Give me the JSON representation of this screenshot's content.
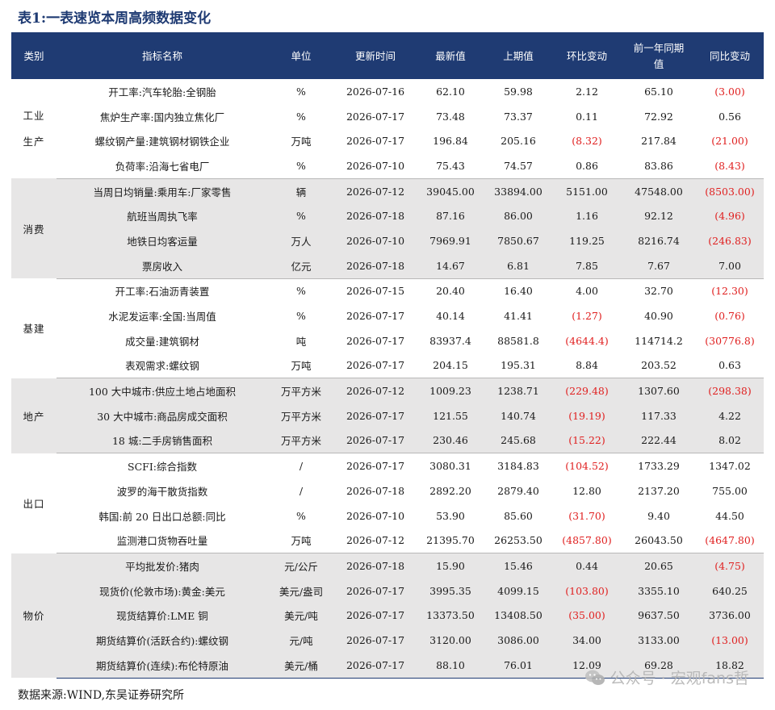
{
  "title": "表1:一表速览本周高频数据变化",
  "headers": [
    "类别",
    "指标名称",
    "单位",
    "更新时间",
    "最新值",
    "上期值",
    "环比变动",
    "前一年同期值",
    "同比变动"
  ],
  "groups": [
    {
      "category": "工业生产",
      "bg": "white",
      "rows": [
        {
          "name": "开工率:汽车轮胎:全钢胎",
          "unit": "%",
          "date": "2026-07-16",
          "latest": "62.10",
          "prev": "59.98",
          "mom": "2.12",
          "yoy_prev": "65.10",
          "yoy": "(3.00)"
        },
        {
          "name": "焦炉生产率:国内独立焦化厂",
          "unit": "%",
          "date": "2026-07-17",
          "latest": "73.48",
          "prev": "73.37",
          "mom": "0.11",
          "yoy_prev": "72.92",
          "yoy": "0.56"
        },
        {
          "name": "螺纹钢产量:建筑钢材钢铁企业",
          "unit": "万吨",
          "date": "2026-07-17",
          "latest": "196.84",
          "prev": "205.16",
          "mom": "(8.32)",
          "yoy_prev": "217.84",
          "yoy": "(21.00)"
        },
        {
          "name": "负荷率:沿海七省电厂",
          "unit": "%",
          "date": "2026-07-10",
          "latest": "75.43",
          "prev": "74.57",
          "mom": "0.86",
          "yoy_prev": "83.86",
          "yoy": "(8.43)"
        }
      ]
    },
    {
      "category": "消费",
      "bg": "gray",
      "rows": [
        {
          "name": "当周日均销量:乘用车:厂家零售",
          "unit": "辆",
          "date": "2026-07-12",
          "latest": "39045.00",
          "prev": "33894.00",
          "mom": "5151.00",
          "yoy_prev": "47548.00",
          "yoy": "(8503.00)"
        },
        {
          "name": "航班当周执飞率",
          "unit": "%",
          "date": "2026-07-18",
          "latest": "87.16",
          "prev": "86.00",
          "mom": "1.16",
          "yoy_prev": "92.12",
          "yoy": "(4.96)"
        },
        {
          "name": "地铁日均客运量",
          "unit": "万人",
          "date": "2026-07-10",
          "latest": "7969.91",
          "prev": "7850.67",
          "mom": "119.25",
          "yoy_prev": "8216.74",
          "yoy": "(246.83)"
        },
        {
          "name": "票房收入",
          "unit": "亿元",
          "date": "2026-07-18",
          "latest": "14.67",
          "prev": "6.81",
          "mom": "7.85",
          "yoy_prev": "7.67",
          "yoy": "7.00"
        }
      ]
    },
    {
      "category": "基建",
      "bg": "white",
      "rows": [
        {
          "name": "开工率:石油沥青装置",
          "unit": "%",
          "date": "2026-07-15",
          "latest": "20.40",
          "prev": "16.40",
          "mom": "4.00",
          "yoy_prev": "32.70",
          "yoy": "(12.30)"
        },
        {
          "name": "水泥发运率:全国:当周值",
          "unit": "%",
          "date": "2026-07-17",
          "latest": "40.14",
          "prev": "41.41",
          "mom": "(1.27)",
          "yoy_prev": "40.90",
          "yoy": "(0.76)"
        },
        {
          "name": "成交量:建筑钢材",
          "unit": "吨",
          "date": "2026-07-17",
          "latest": "83937.4",
          "prev": "88581.8",
          "mom": "(4644.4)",
          "yoy_prev": "114714.2",
          "yoy": "(30776.8)"
        },
        {
          "name": "表观需求:螺纹钢",
          "unit": "万吨",
          "date": "2026-07-17",
          "latest": "204.15",
          "prev": "195.31",
          "mom": "8.84",
          "yoy_prev": "203.52",
          "yoy": "0.63"
        }
      ]
    },
    {
      "category": "地产",
      "bg": "gray",
      "rows": [
        {
          "name": "100 大中城市:供应土地占地面积",
          "unit": "万平方米",
          "date": "2026-07-12",
          "latest": "1009.23",
          "prev": "1238.71",
          "mom": "(229.48)",
          "yoy_prev": "1307.60",
          "yoy": "(298.38)"
        },
        {
          "name": "30 大中城市:商品房成交面积",
          "unit": "万平方米",
          "date": "2026-07-17",
          "latest": "121.55",
          "prev": "140.74",
          "mom": "(19.19)",
          "yoy_prev": "117.33",
          "yoy": "4.22"
        },
        {
          "name": "18 城:二手房销售面积",
          "unit": "万平方米",
          "date": "2026-07-17",
          "latest": "230.46",
          "prev": "245.68",
          "mom": "(15.22)",
          "yoy_prev": "222.44",
          "yoy": "8.02"
        }
      ]
    },
    {
      "category": "出口",
      "bg": "white",
      "rows": [
        {
          "name": "SCFI:综合指数",
          "unit": "/",
          "date": "2026-07-17",
          "latest": "3080.31",
          "prev": "3184.83",
          "mom": "(104.52)",
          "yoy_prev": "1733.29",
          "yoy": "1347.02"
        },
        {
          "name": "波罗的海干散货指数",
          "unit": "/",
          "date": "2026-07-18",
          "latest": "2892.20",
          "prev": "2879.40",
          "mom": "12.80",
          "yoy_prev": "2137.20",
          "yoy": "755.00"
        },
        {
          "name": "韩国:前 20 日出口总额:同比",
          "unit": "%",
          "date": "2026-07-10",
          "latest": "53.90",
          "prev": "85.60",
          "mom": "(31.70)",
          "yoy_prev": "9.40",
          "yoy": "44.50"
        },
        {
          "name": "监测港口货物吞吐量",
          "unit": "万吨",
          "date": "2026-07-12",
          "latest": "21395.70",
          "prev": "26253.50",
          "mom": "(4857.80)",
          "yoy_prev": "26043.50",
          "yoy": "(4647.80)"
        }
      ]
    },
    {
      "category": "物价",
      "bg": "gray",
      "rows": [
        {
          "name": "平均批发价:猪肉",
          "unit": "元/公斤",
          "date": "2026-07-18",
          "latest": "15.90",
          "prev": "15.46",
          "mom": "0.44",
          "yoy_prev": "20.65",
          "yoy": "(4.75)"
        },
        {
          "name": "现货价(伦敦市场):黄金:美元",
          "unit": "美元/盎司",
          "date": "2026-07-17",
          "latest": "3995.35",
          "prev": "4099.15",
          "mom": "(103.80)",
          "yoy_prev": "3355.10",
          "yoy": "640.25"
        },
        {
          "name": "现货结算价:LME 铜",
          "unit": "美元/吨",
          "date": "2026-07-17",
          "latest": "13373.50",
          "prev": "13408.50",
          "mom": "(35.00)",
          "yoy_prev": "9637.50",
          "yoy": "3736.00"
        },
        {
          "name": "期货结算价(活跃合约):螺纹钢",
          "unit": "元/吨",
          "date": "2026-07-17",
          "latest": "3120.00",
          "prev": "3086.00",
          "mom": "34.00",
          "yoy_prev": "3133.00",
          "yoy": "(13.00)"
        },
        {
          "name": "期货结算价(连续):布伦特原油",
          "unit": "美元/桶",
          "date": "2026-07-17",
          "latest": "88.10",
          "prev": "76.01",
          "mom": "12.09",
          "yoy_prev": "69.28",
          "yoy": "18.82"
        }
      ]
    }
  ],
  "source": "数据来源:WIND,东吴证券研究所",
  "watermark": "公众号 · 宏观fans哲",
  "watermark_icon": "wechat-icon",
  "colors": {
    "header_bg": "#1f3b73",
    "gray_row": "#e7e6e6",
    "negative": "#e02020"
  }
}
